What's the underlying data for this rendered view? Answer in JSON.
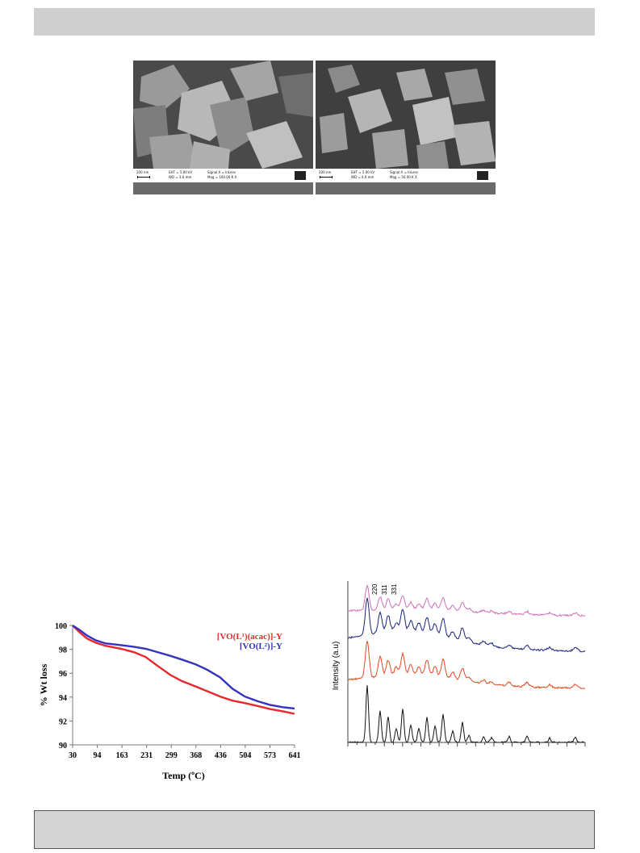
{
  "sem_images": [
    {
      "scale_label": "200 nm",
      "eht": "EHT = 5.00 kV",
      "wd": "WD = 3.6 mm",
      "signal": "Signal A = InLens",
      "mag": "Mag = 100.00 K X",
      "logo": "ZEISS"
    },
    {
      "scale_label": "200 nm",
      "eht": "EHT = 5.00 kV",
      "wd": "WD = 4.0 mm",
      "signal": "Signal A = InLens",
      "mag": "Mag = 50.00 K X",
      "logo": "ZEISS"
    }
  ],
  "chart_data": [
    {
      "type": "line",
      "title": "",
      "xlabel": "Temp (ºC)",
      "ylabel": "% Wt loss",
      "xticks": [
        "30",
        "94",
        "163",
        "231",
        "299",
        "368",
        "436",
        "504",
        "573",
        "641"
      ],
      "yticks": [
        "90",
        "92",
        "94",
        "96",
        "98",
        "100"
      ],
      "xlim": [
        30,
        641
      ],
      "ylim": [
        90,
        100
      ],
      "legend_position": "top-right",
      "series": [
        {
          "name": "[VO(L¹)(acac)]-Y",
          "color": "#e8282a",
          "x": [
            30,
            50,
            70,
            94,
            120,
            163,
            200,
            231,
            260,
            299,
            330,
            368,
            400,
            436,
            470,
            504,
            540,
            573,
            610,
            641
          ],
          "y": [
            100.0,
            99.4,
            98.9,
            98.55,
            98.3,
            98.05,
            97.75,
            97.35,
            96.7,
            95.85,
            95.35,
            94.9,
            94.5,
            94.05,
            93.7,
            93.5,
            93.25,
            93.0,
            92.8,
            92.6
          ]
        },
        {
          "name": "[VO(L²)]-Y",
          "color": "#3333c0",
          "x": [
            30,
            50,
            70,
            94,
            120,
            163,
            200,
            231,
            260,
            299,
            330,
            368,
            400,
            436,
            470,
            504,
            540,
            573,
            610,
            641
          ],
          "y": [
            100.0,
            99.6,
            99.15,
            98.75,
            98.5,
            98.35,
            98.2,
            98.05,
            97.8,
            97.45,
            97.15,
            96.75,
            96.3,
            95.65,
            94.7,
            94.05,
            93.65,
            93.35,
            93.15,
            93.05
          ]
        }
      ]
    },
    {
      "type": "line",
      "title": "",
      "xlabel": "",
      "ylabel": "Intensity (a.u)",
      "annotations": [
        "220",
        "311",
        "331"
      ],
      "series": [
        {
          "color": "#d070b8"
        },
        {
          "color": "#1a237e"
        },
        {
          "color": "#e04a20"
        },
        {
          "color": "#111111"
        }
      ]
    }
  ]
}
